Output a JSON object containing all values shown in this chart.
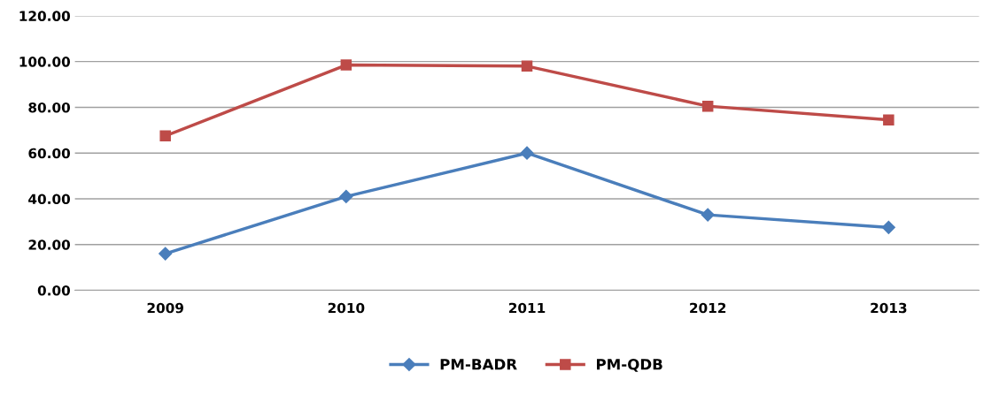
{
  "chart_data": {
    "type": "line",
    "categories": [
      "2009",
      "2010",
      "2011",
      "2012",
      "2013"
    ],
    "series": [
      {
        "name": "PM-BADR",
        "color": "#4a7ebb",
        "marker": "diamond",
        "values": [
          16,
          41,
          60,
          33,
          27.5
        ]
      },
      {
        "name": "PM-QDB",
        "color": "#be4b48",
        "marker": "square",
        "values": [
          67.5,
          98.5,
          98,
          80.5,
          74.5
        ]
      }
    ],
    "ylim": [
      0,
      120
    ],
    "yticks": [
      {
        "value": 0,
        "label": "0.00"
      },
      {
        "value": 20,
        "label": "20.00"
      },
      {
        "value": 40,
        "label": "40.00"
      },
      {
        "value": 60,
        "label": "60.00"
      },
      {
        "value": 80,
        "label": "80.00"
      },
      {
        "value": 100,
        "label": "100.00"
      },
      {
        "value": 120,
        "label": "120.00"
      }
    ],
    "grid": "y",
    "legend": "bottom",
    "line_style": "solid"
  }
}
